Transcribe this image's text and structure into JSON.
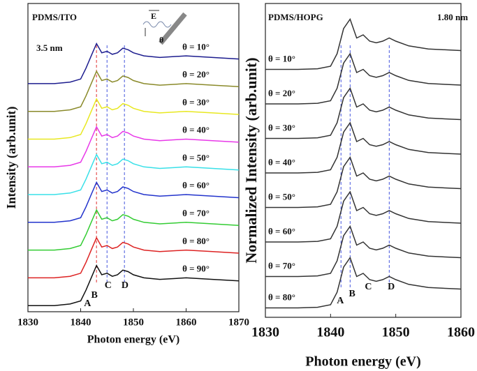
{
  "chart_data": [
    {
      "type": "line",
      "title": "PDMS/ITO",
      "subtitle": "3.5 nm",
      "inset_labels": [
        "E",
        "θ"
      ],
      "xlabel": "Photon energy (eV)",
      "ylabel": "Intensity (arb.unit)",
      "xlim": [
        1830,
        1870
      ],
      "xticks": [
        1830,
        1840,
        1850,
        1860,
        1870
      ],
      "ylim": [
        0,
        10
      ],
      "x": [
        1830,
        1835,
        1838,
        1840,
        1841,
        1842,
        1843,
        1844,
        1845,
        1846,
        1847,
        1848,
        1849,
        1850,
        1852,
        1855,
        1860,
        1865,
        1870
      ],
      "series": [
        {
          "name": "θ = 10°",
          "color": "#1c1c8e",
          "values": [
            7.4,
            7.4,
            7.45,
            7.55,
            7.9,
            8.3,
            8.7,
            8.4,
            8.45,
            8.35,
            8.4,
            8.55,
            8.5,
            8.4,
            8.3,
            8.25,
            8.3,
            8.25,
            8.2
          ]
        },
        {
          "name": "θ = 20°",
          "color": "#8a8a2a",
          "values": [
            6.5,
            6.5,
            6.55,
            6.65,
            7.0,
            7.4,
            7.8,
            7.5,
            7.55,
            7.45,
            7.5,
            7.65,
            7.6,
            7.5,
            7.4,
            7.35,
            7.4,
            7.35,
            7.3
          ]
        },
        {
          "name": "θ = 30°",
          "color": "#e8e820",
          "values": [
            5.6,
            5.6,
            5.65,
            5.75,
            6.1,
            6.5,
            6.9,
            6.6,
            6.65,
            6.55,
            6.6,
            6.75,
            6.7,
            6.6,
            6.5,
            6.45,
            6.5,
            6.45,
            6.4
          ]
        },
        {
          "name": "θ = 40°",
          "color": "#e838e8",
          "values": [
            4.7,
            4.7,
            4.75,
            4.85,
            5.2,
            5.6,
            6.0,
            5.7,
            5.75,
            5.65,
            5.7,
            5.85,
            5.8,
            5.7,
            5.6,
            5.55,
            5.6,
            5.55,
            5.5
          ]
        },
        {
          "name": "θ = 50°",
          "color": "#38e0e8",
          "values": [
            3.8,
            3.8,
            3.85,
            3.95,
            4.3,
            4.7,
            5.1,
            4.8,
            4.85,
            4.75,
            4.8,
            4.95,
            4.9,
            4.8,
            4.7,
            4.65,
            4.7,
            4.65,
            4.6
          ]
        },
        {
          "name": "θ = 60°",
          "color": "#2233cc",
          "values": [
            2.9,
            2.9,
            2.95,
            3.05,
            3.4,
            3.8,
            4.2,
            3.9,
            3.95,
            3.85,
            3.9,
            4.05,
            4.0,
            3.9,
            3.8,
            3.75,
            3.8,
            3.75,
            3.7
          ]
        },
        {
          "name": "θ = 70°",
          "color": "#33cc33",
          "values": [
            2.0,
            2.0,
            2.05,
            2.15,
            2.5,
            2.9,
            3.3,
            3.0,
            3.05,
            2.95,
            3.0,
            3.15,
            3.1,
            3.0,
            2.9,
            2.85,
            2.9,
            2.85,
            2.8
          ]
        },
        {
          "name": "θ = 80°",
          "color": "#dd2222",
          "values": [
            1.1,
            1.1,
            1.15,
            1.25,
            1.6,
            2.0,
            2.4,
            2.1,
            2.15,
            2.05,
            2.1,
            2.25,
            2.2,
            2.1,
            2.0,
            1.95,
            2.0,
            1.95,
            1.9
          ]
        },
        {
          "name": "θ = 90°",
          "color": "#111111",
          "values": [
            0.2,
            0.2,
            0.25,
            0.35,
            0.7,
            1.1,
            1.5,
            1.2,
            1.25,
            1.15,
            1.2,
            1.35,
            1.3,
            1.2,
            1.1,
            1.05,
            1.1,
            1.05,
            1.0
          ]
        }
      ],
      "ref_lines": [
        {
          "x": 1843,
          "color": "#e03030"
        },
        {
          "x": 1845,
          "color": "#4455dd"
        },
        {
          "x": 1848.3,
          "color": "#4455dd"
        }
      ],
      "peaks": [
        {
          "label": "A",
          "x": 1841.3
        },
        {
          "label": "B",
          "x": 1842.6
        },
        {
          "label": "C",
          "x": 1845.2
        },
        {
          "label": "D",
          "x": 1848.4
        }
      ]
    },
    {
      "type": "line",
      "title": "PDMS/HOPG",
      "subtitle": "1.80 nm",
      "xlabel": "Photon energy (eV)",
      "ylabel": "Normalized Intensity (arb.unit)",
      "xlim": [
        1830,
        1860
      ],
      "xticks": [
        1830,
        1840,
        1850,
        1860
      ],
      "ylim": [
        0,
        10
      ],
      "x": [
        1830,
        1835,
        1838,
        1840,
        1841,
        1842,
        1843,
        1844,
        1845,
        1846,
        1847,
        1848,
        1849,
        1850,
        1852,
        1855,
        1860
      ],
      "series": [
        {
          "name": "θ = 10°",
          "color": "#333333",
          "values": [
            7.9,
            7.9,
            7.92,
            8.0,
            8.4,
            9.2,
            9.5,
            8.9,
            9.0,
            8.8,
            8.75,
            8.8,
            8.9,
            8.8,
            8.65,
            8.55,
            8.5
          ]
        },
        {
          "name": "θ = 20°",
          "color": "#333333",
          "values": [
            6.8,
            6.8,
            6.82,
            6.9,
            7.3,
            8.1,
            8.4,
            7.8,
            7.9,
            7.7,
            7.65,
            7.7,
            7.8,
            7.7,
            7.55,
            7.45,
            7.4
          ]
        },
        {
          "name": "θ = 30°",
          "color": "#333333",
          "values": [
            5.7,
            5.7,
            5.72,
            5.8,
            6.2,
            7.0,
            7.3,
            6.7,
            6.8,
            6.6,
            6.55,
            6.6,
            6.7,
            6.6,
            6.45,
            6.35,
            6.3
          ]
        },
        {
          "name": "θ = 40°",
          "color": "#333333",
          "values": [
            4.6,
            4.6,
            4.62,
            4.7,
            5.1,
            5.9,
            6.2,
            5.6,
            5.7,
            5.5,
            5.45,
            5.5,
            5.6,
            5.5,
            5.35,
            5.25,
            5.2
          ]
        },
        {
          "name": "θ = 50°",
          "color": "#333333",
          "values": [
            3.5,
            3.5,
            3.52,
            3.6,
            4.0,
            4.8,
            5.1,
            4.5,
            4.6,
            4.4,
            4.35,
            4.4,
            4.5,
            4.4,
            4.25,
            4.15,
            4.1
          ]
        },
        {
          "name": "θ = 60°",
          "color": "#333333",
          "values": [
            2.4,
            2.4,
            2.42,
            2.5,
            2.9,
            3.7,
            4.0,
            3.4,
            3.5,
            3.3,
            3.25,
            3.3,
            3.4,
            3.3,
            3.15,
            3.05,
            3.0
          ]
        },
        {
          "name": "θ = 70°",
          "color": "#333333",
          "values": [
            1.3,
            1.3,
            1.32,
            1.4,
            1.8,
            2.6,
            2.9,
            2.3,
            2.4,
            2.2,
            2.15,
            2.2,
            2.3,
            2.2,
            2.05,
            1.95,
            1.9
          ]
        },
        {
          "name": "θ = 80°",
          "color": "#333333",
          "values": [
            0.3,
            0.3,
            0.32,
            0.4,
            0.8,
            1.6,
            1.9,
            1.3,
            1.4,
            1.2,
            1.15,
            1.2,
            1.3,
            1.2,
            1.05,
            0.95,
            0.9
          ]
        }
      ],
      "ref_lines": [
        {
          "x": 1841.6,
          "color": "#4455dd"
        },
        {
          "x": 1843,
          "color": "#4455dd"
        },
        {
          "x": 1849,
          "color": "#4455dd"
        }
      ],
      "peaks": [
        {
          "label": "A",
          "x": 1841.5
        },
        {
          "label": "B",
          "x": 1843.3
        },
        {
          "label": "C",
          "x": 1845.8
        },
        {
          "label": "D",
          "x": 1849.3
        }
      ]
    }
  ]
}
